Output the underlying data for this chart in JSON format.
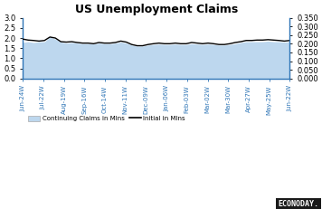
{
  "title": "US Unemployment Claims",
  "x_labels": [
    "Jun-24W",
    "Jul-22W",
    "Aug-19W",
    "Sep-16W",
    "Oct-14W",
    "Nov-11W",
    "Dec-09W",
    "Jan-06W",
    "Feb-03W",
    "Mar-02W",
    "Mar-30W",
    "Apr-27W",
    "May-25W",
    "Jun-22W"
  ],
  "continuing_claims": [
    1.78,
    1.82,
    1.78,
    1.82,
    1.82,
    2.05,
    1.95,
    1.8,
    1.75,
    1.78,
    1.75,
    1.72,
    1.72,
    1.7,
    1.75,
    1.72,
    1.72,
    1.75,
    1.8,
    1.75,
    1.65,
    1.6,
    1.6,
    1.65,
    1.68,
    1.7,
    1.68,
    1.68,
    1.7,
    1.68,
    1.68,
    1.72,
    1.7,
    1.68,
    1.7,
    1.68,
    1.65,
    1.65,
    1.68,
    1.72,
    1.78,
    1.82,
    1.82,
    1.82,
    1.82,
    1.85,
    1.82,
    1.82,
    1.8,
    1.82
  ],
  "initial_claims": [
    1.95,
    1.9,
    1.88,
    1.85,
    1.88,
    2.05,
    2.0,
    1.82,
    1.8,
    1.82,
    1.78,
    1.75,
    1.75,
    1.72,
    1.78,
    1.75,
    1.75,
    1.78,
    1.85,
    1.8,
    1.68,
    1.62,
    1.62,
    1.68,
    1.72,
    1.75,
    1.72,
    1.72,
    1.75,
    1.72,
    1.72,
    1.78,
    1.75,
    1.72,
    1.75,
    1.72,
    1.68,
    1.68,
    1.72,
    1.78,
    1.82,
    1.88,
    1.88,
    1.9,
    1.9,
    1.92,
    1.9,
    1.88,
    1.85,
    1.88
  ],
  "ylim_left": [
    0.0,
    3.0
  ],
  "ylim_right": [
    0.0,
    0.35
  ],
  "yticks_left": [
    0.0,
    0.5,
    1.0,
    1.5,
    2.0,
    2.5,
    3.0
  ],
  "yticks_right": [
    0.0,
    0.05,
    0.1,
    0.15,
    0.2,
    0.25,
    0.3,
    0.35
  ],
  "fill_color": "#bdd7ee",
  "line_color": "#000000",
  "axis_color": "#2e75b6",
  "tick_color": "#2e75b6",
  "background_color": "#ffffff",
  "legend_patch_label": "Continuing Claims in Mlns",
  "legend_line_label": "Initial in Mlns",
  "econoday_text": "ECONODAY.",
  "econoday_bg": "#1a1a1a",
  "econoday_text_color": "#ffffff",
  "title_fontsize": 9,
  "tick_labelsize": 6,
  "x_tick_labelsize": 5
}
